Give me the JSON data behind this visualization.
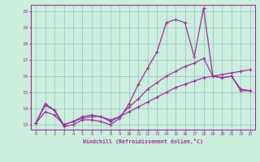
{
  "xlabel": "Windchill (Refroidissement éolien,°C)",
  "bg_color": "#cceedd",
  "grid_color": "#99bbcc",
  "line_color": "#993399",
  "xlim": [
    -0.5,
    23.5
  ],
  "ylim": [
    12.7,
    20.4
  ],
  "xticks": [
    0,
    1,
    2,
    3,
    4,
    5,
    6,
    7,
    8,
    9,
    10,
    11,
    12,
    13,
    14,
    15,
    16,
    17,
    18,
    19,
    20,
    21,
    22,
    23
  ],
  "yticks": [
    13,
    14,
    15,
    16,
    17,
    18,
    19,
    20
  ],
  "line1_x": [
    0,
    1,
    2,
    3,
    4,
    5,
    6,
    7,
    8,
    9,
    10,
    11,
    12,
    13,
    14,
    15,
    16,
    17,
    18,
    19,
    20,
    21,
    22,
    23
  ],
  "line1_y": [
    13.1,
    14.3,
    13.9,
    12.9,
    13.0,
    13.3,
    13.3,
    13.2,
    13.0,
    13.4,
    14.3,
    15.5,
    16.5,
    17.5,
    19.3,
    19.5,
    19.3,
    17.2,
    20.2,
    16.0,
    15.9,
    16.0,
    15.1,
    15.1
  ],
  "line2_x": [
    0,
    1,
    2,
    3,
    4,
    5,
    6,
    7,
    8,
    9,
    10,
    11,
    12,
    13,
    14,
    15,
    16,
    17,
    18,
    19,
    20,
    21,
    22,
    23
  ],
  "line2_y": [
    13.1,
    14.2,
    13.9,
    13.0,
    13.2,
    13.5,
    13.6,
    13.5,
    13.2,
    13.5,
    14.1,
    14.6,
    15.2,
    15.6,
    16.0,
    16.3,
    16.6,
    16.8,
    17.1,
    16.0,
    15.9,
    16.0,
    15.2,
    15.1
  ],
  "line3_x": [
    0,
    1,
    2,
    3,
    4,
    5,
    6,
    7,
    8,
    9,
    10,
    11,
    12,
    13,
    14,
    15,
    16,
    17,
    18,
    19,
    20,
    21,
    22,
    23
  ],
  "line3_y": [
    13.1,
    13.8,
    13.6,
    13.0,
    13.2,
    13.4,
    13.5,
    13.5,
    13.3,
    13.5,
    13.8,
    14.1,
    14.4,
    14.7,
    15.0,
    15.3,
    15.5,
    15.7,
    15.9,
    16.0,
    16.1,
    16.2,
    16.3,
    16.4
  ]
}
